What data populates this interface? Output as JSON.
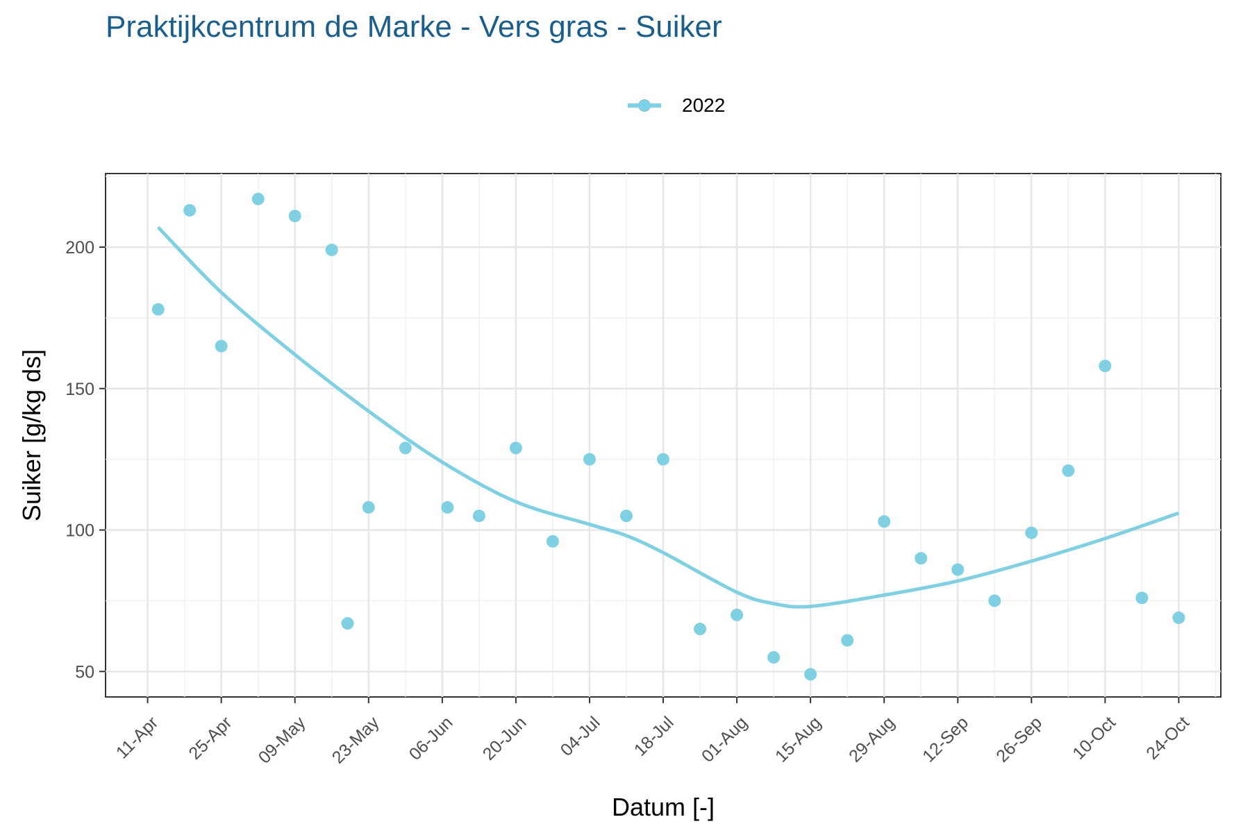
{
  "chart_data": {
    "type": "scatter",
    "title": "Praktijkcentrum de Marke - Vers gras - Suiker",
    "xlabel": "Datum [-]",
    "ylabel": "Suiker [g/kg ds]",
    "x_ticks": [
      "11-Apr",
      "25-Apr",
      "09-May",
      "23-May",
      "06-Jun",
      "20-Jun",
      "04-Jul",
      "18-Jul",
      "01-Aug",
      "15-Aug",
      "29-Aug",
      "12-Sep",
      "26-Sep",
      "10-Oct",
      "24-Oct"
    ],
    "x_range": [
      "2022-04-03",
      "2022-11-01"
    ],
    "y_ticks": [
      50,
      100,
      150,
      200
    ],
    "ylim": [
      41,
      226
    ],
    "grid": true,
    "legend": {
      "position": "top",
      "entries": [
        "2022"
      ]
    },
    "series": [
      {
        "name": "2022",
        "color": "#7fd0e3",
        "points": [
          {
            "x": "2022-04-13",
            "y": 178
          },
          {
            "x": "2022-04-19",
            "y": 213
          },
          {
            "x": "2022-04-25",
            "y": 165
          },
          {
            "x": "2022-05-02",
            "y": 217
          },
          {
            "x": "2022-05-09",
            "y": 211
          },
          {
            "x": "2022-05-16",
            "y": 199
          },
          {
            "x": "2022-05-19",
            "y": 67
          },
          {
            "x": "2022-05-23",
            "y": 108
          },
          {
            "x": "2022-05-30",
            "y": 129
          },
          {
            "x": "2022-06-07",
            "y": 108
          },
          {
            "x": "2022-06-13",
            "y": 105
          },
          {
            "x": "2022-06-20",
            "y": 129
          },
          {
            "x": "2022-06-27",
            "y": 96
          },
          {
            "x": "2022-07-04",
            "y": 125
          },
          {
            "x": "2022-07-11",
            "y": 105
          },
          {
            "x": "2022-07-18",
            "y": 125
          },
          {
            "x": "2022-07-25",
            "y": 65
          },
          {
            "x": "2022-08-01",
            "y": 70
          },
          {
            "x": "2022-08-08",
            "y": 55
          },
          {
            "x": "2022-08-15",
            "y": 49
          },
          {
            "x": "2022-08-22",
            "y": 61
          },
          {
            "x": "2022-08-29",
            "y": 103
          },
          {
            "x": "2022-09-05",
            "y": 90
          },
          {
            "x": "2022-09-12",
            "y": 86
          },
          {
            "x": "2022-09-19",
            "y": 75
          },
          {
            "x": "2022-09-26",
            "y": 99
          },
          {
            "x": "2022-10-03",
            "y": 121
          },
          {
            "x": "2022-10-10",
            "y": 158
          },
          {
            "x": "2022-10-17",
            "y": 76
          },
          {
            "x": "2022-10-24",
            "y": 69
          }
        ],
        "trend": [
          {
            "x": "2022-04-13",
            "y": 207
          },
          {
            "x": "2022-04-25",
            "y": 184
          },
          {
            "x": "2022-05-09",
            "y": 162
          },
          {
            "x": "2022-05-23",
            "y": 142
          },
          {
            "x": "2022-06-06",
            "y": 124
          },
          {
            "x": "2022-06-20",
            "y": 110
          },
          {
            "x": "2022-07-04",
            "y": 102
          },
          {
            "x": "2022-07-11",
            "y": 98
          },
          {
            "x": "2022-07-18",
            "y": 92
          },
          {
            "x": "2022-08-01",
            "y": 78
          },
          {
            "x": "2022-08-08",
            "y": 74
          },
          {
            "x": "2022-08-15",
            "y": 73
          },
          {
            "x": "2022-08-29",
            "y": 77
          },
          {
            "x": "2022-09-12",
            "y": 82
          },
          {
            "x": "2022-09-26",
            "y": 89
          },
          {
            "x": "2022-10-10",
            "y": 97
          },
          {
            "x": "2022-10-24",
            "y": 106
          }
        ]
      }
    ]
  }
}
